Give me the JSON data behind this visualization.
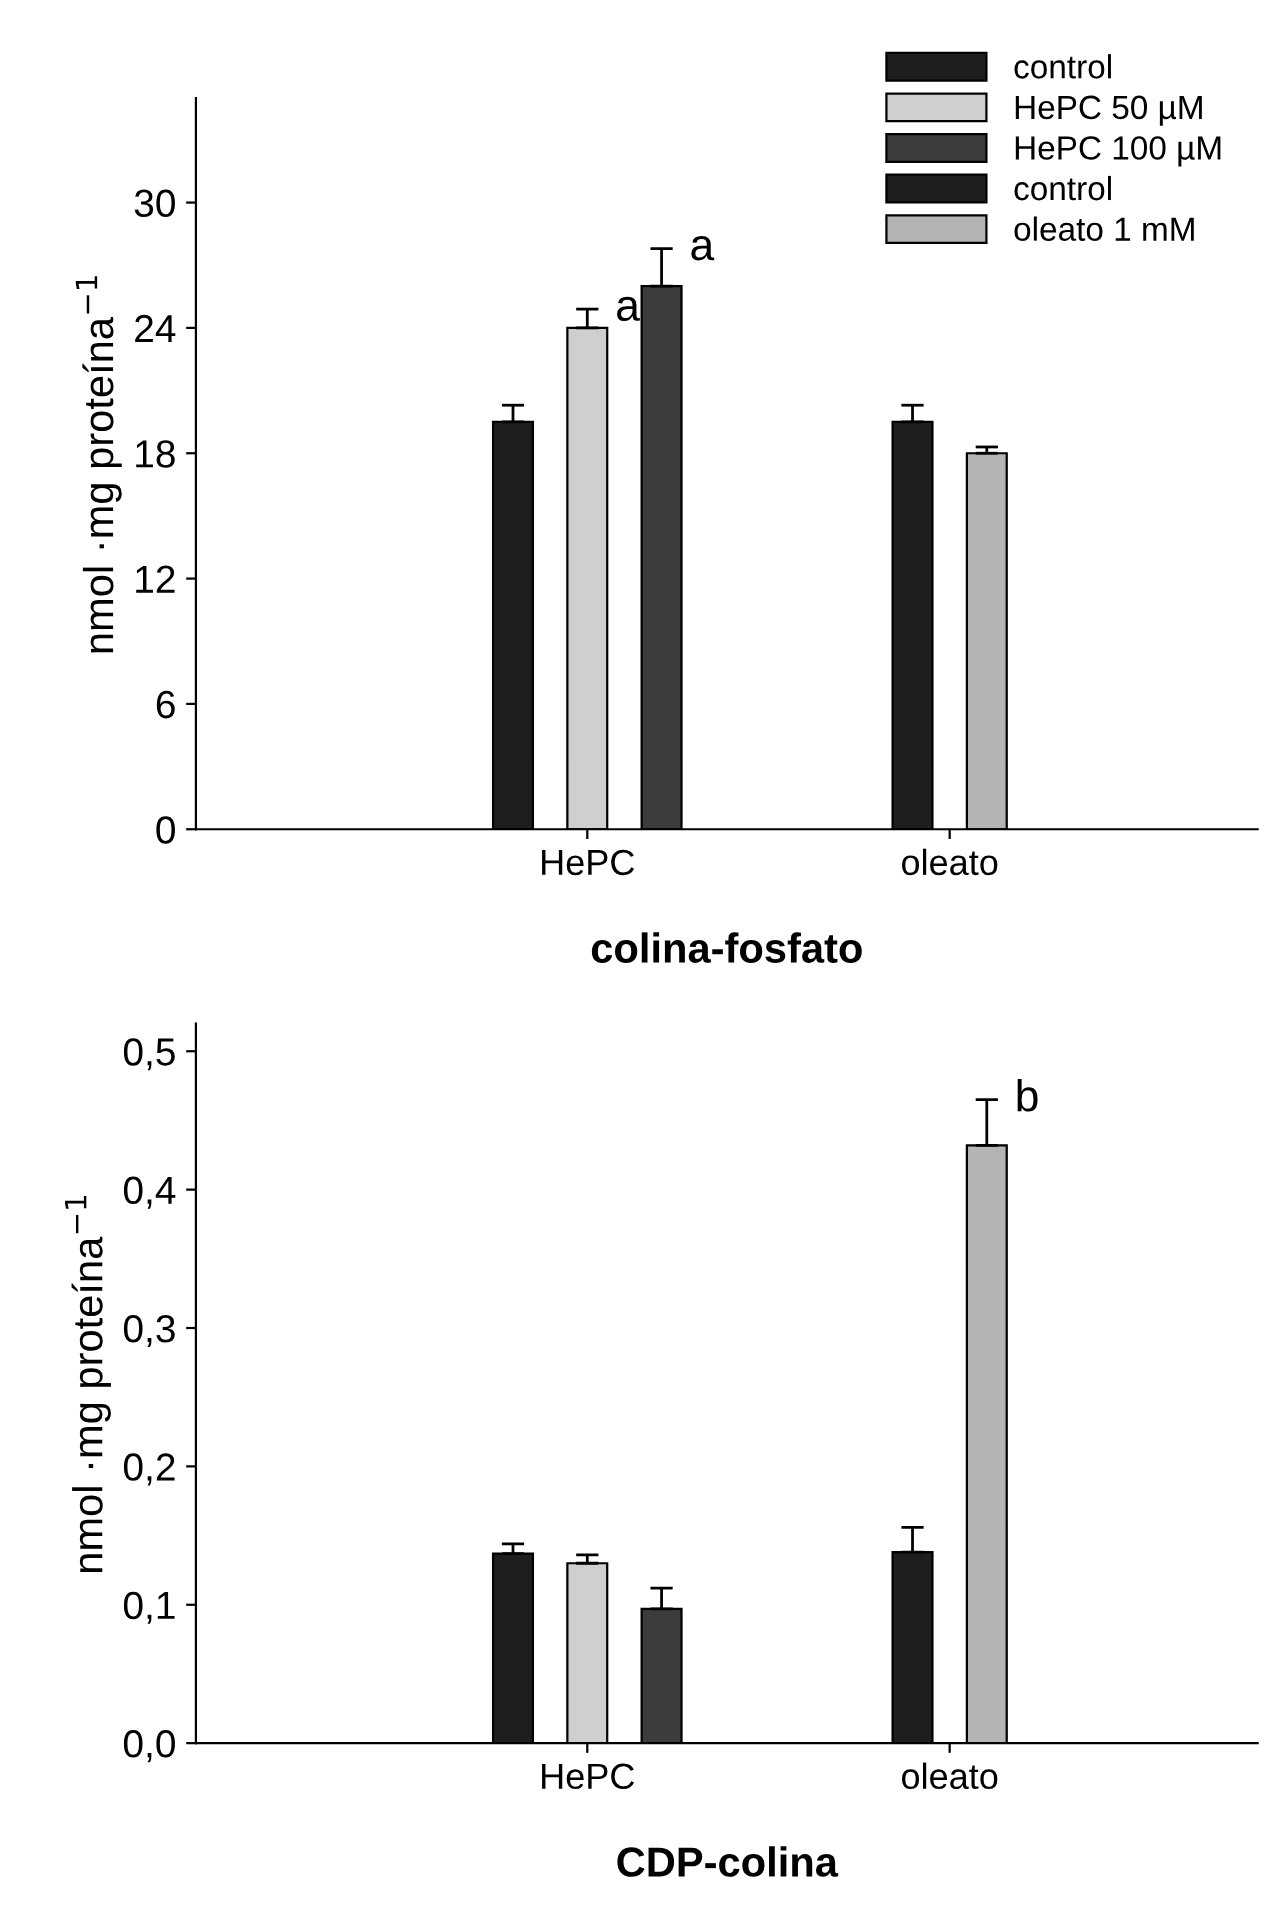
{
  "chart_data": [
    {
      "type": "bar",
      "xlabel": "colina-fosfato",
      "ylabel": "nmol ·mg proteína$^{−1}$",
      "categories": [
        "HePC",
        "oleato"
      ],
      "series": [
        {
          "name": "control",
          "color": "#1e1e1e",
          "values": [
            19.5,
            null
          ],
          "errors": [
            [
              19.5,
              20.3
            ],
            null
          ]
        },
        {
          "name": "HePC 50 µM",
          "color": "#cfcfcf",
          "values": [
            24.0,
            null
          ],
          "errors": [
            [
              24.0,
              24.9
            ],
            null
          ]
        },
        {
          "name": "HePC 100 µM",
          "color": "#3c3c3c",
          "values": [
            26.0,
            null
          ],
          "errors": [
            [
              26.0,
              27.8
            ],
            null
          ]
        },
        {
          "name": "control",
          "color": "#1e1e1e",
          "values": [
            null,
            19.5
          ],
          "errors": [
            null,
            [
              19.5,
              20.3
            ]
          ]
        },
        {
          "name": "oleato 1 mM",
          "color": "#b4b4b4",
          "values": [
            null,
            18.0
          ],
          "errors": [
            null,
            [
              18.0,
              18.3
            ]
          ]
        }
      ],
      "ylim": [
        0,
        35
      ],
      "yticks": [
        0,
        6,
        12,
        18,
        24,
        30
      ],
      "legend": "top right",
      "grid": false,
      "annotations": [
        "a",
        "a"
      ]
    },
    {
      "type": "bar",
      "xlabel": "CDP-colina",
      "ylabel": "nmol ·mg proteína$^{−1}$",
      "categories": [
        "HePC",
        "oleato"
      ],
      "series": [
        {
          "color": "#1e1e1e",
          "values": [
            0.137,
            null
          ],
          "errors": [
            [
              0.137,
              0.144
            ],
            null
          ]
        },
        {
          "color": "#cfcfcf",
          "values": [
            0.13,
            null
          ],
          "errors": [
            [
              0.13,
              0.136
            ],
            null
          ]
        },
        {
          "color": "#3c3c3c",
          "values": [
            0.097,
            null
          ],
          "errors": [
            [
              0.097,
              0.112
            ],
            null
          ]
        },
        {
          "color": "#1e1e1e",
          "values": [
            null,
            0.138
          ],
          "errors": [
            null,
            [
              0.138,
              0.156
            ]
          ]
        },
        {
          "color": "#b4b4b4",
          "values": [
            null,
            0.432
          ],
          "errors": [
            null,
            [
              0.432,
              0.465
            ]
          ]
        }
      ],
      "ylim": [
        0,
        0.52
      ],
      "yticks": [
        {
          "value": 0,
          "label": "0,0"
        },
        {
          "value": 0.1,
          "label": "0,1"
        },
        {
          "value": 0.2,
          "label": "0,2"
        },
        {
          "value": 0.3,
          "label": "0,3"
        },
        {
          "value": 0.4,
          "label": "0,4"
        },
        {
          "value": 0.5,
          "label": "0,5"
        }
      ],
      "grid": false,
      "annotations": [
        "b"
      ]
    }
  ]
}
